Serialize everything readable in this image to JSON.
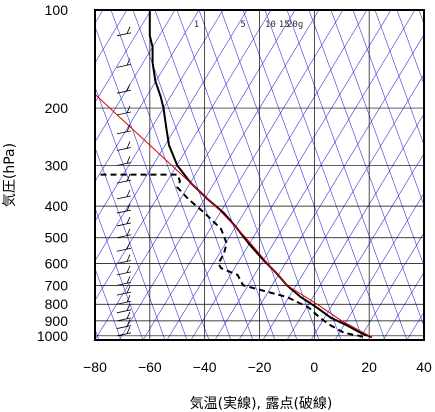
{
  "chart_data": {
    "type": "line",
    "subtype": "skew-T log-P aerological diagram",
    "xlabel": "気温(実線), 露点(破線)",
    "ylabel": "気圧(hPa)",
    "xlim": [
      -80,
      40
    ],
    "ylim": [
      1030,
      100
    ],
    "y_scale": "log",
    "x_ticks": [
      "−80",
      "−60",
      "−40",
      "−20",
      "0",
      "20",
      "40"
    ],
    "y_ticks": [
      "100",
      "200",
      "300",
      "400",
      "500",
      "600",
      "700",
      "800",
      "900",
      "1000"
    ],
    "mixing_ratio_labels": [
      "1",
      "5",
      "10",
      "15",
      "20g"
    ],
    "grid": true,
    "colors": {
      "temperature": "#000000",
      "dewpoint": "#000000",
      "reference": "#e00000",
      "adiabats": "#3a3ad8",
      "grid": "#000000"
    },
    "series": [
      {
        "name": "気温",
        "style": "solid",
        "points": [
          [
            100,
            -60
          ],
          [
            110,
            -60
          ],
          [
            120,
            -60
          ],
          [
            130,
            -59
          ],
          [
            145,
            -59
          ],
          [
            165,
            -58
          ],
          [
            185,
            -56
          ],
          [
            200,
            -55
          ],
          [
            230,
            -54
          ],
          [
            260,
            -53
          ],
          [
            300,
            -50
          ],
          [
            340,
            -45
          ],
          [
            380,
            -39
          ],
          [
            420,
            -33
          ],
          [
            470,
            -28
          ],
          [
            520,
            -24
          ],
          [
            580,
            -19
          ],
          [
            640,
            -14
          ],
          [
            700,
            -10
          ],
          [
            760,
            -5
          ],
          [
            820,
            1
          ],
          [
            880,
            6
          ],
          [
            930,
            12
          ],
          [
            980,
            17
          ],
          [
            1010,
            21
          ]
        ]
      },
      {
        "name": "露点",
        "style": "dashed",
        "points": [
          [
            320,
            -78
          ],
          [
            320,
            -50
          ],
          [
            335,
            -49
          ],
          [
            350,
            -50
          ],
          [
            380,
            -46
          ],
          [
            420,
            -40
          ],
          [
            470,
            -34
          ],
          [
            520,
            -32
          ],
          [
            560,
            -33
          ],
          [
            600,
            -35
          ],
          [
            620,
            -34
          ],
          [
            650,
            -28
          ],
          [
            700,
            -26
          ],
          [
            760,
            -10
          ],
          [
            820,
            -2
          ],
          [
            880,
            2
          ],
          [
            930,
            6
          ],
          [
            980,
            11
          ],
          [
            1010,
            19
          ]
        ]
      },
      {
        "name": "",
        "style": "solid red",
        "points": [
          [
            175,
            -82
          ],
          [
            300,
            -52
          ],
          [
            400,
            -36
          ],
          [
            500,
            -25
          ],
          [
            600,
            -17
          ],
          [
            700,
            -10
          ],
          [
            800,
            1
          ],
          [
            900,
            10
          ],
          [
            1010,
            21
          ]
        ]
      }
    ]
  }
}
